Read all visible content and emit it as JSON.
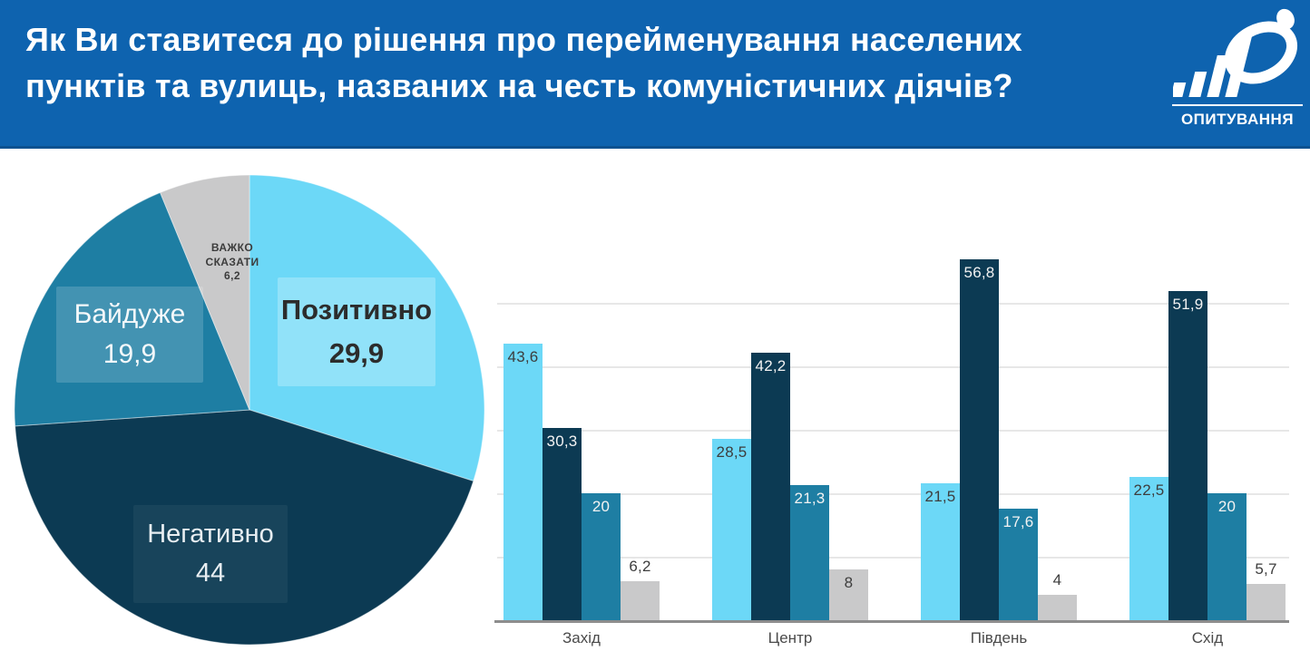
{
  "header": {
    "title_line1": "Як Ви ставитеся до рішення про перейменування населених",
    "title_line2": "пунктів та вулиць, названих на честь комуністичних діячів?",
    "logo_caption": "ОПИТУВАННЯ"
  },
  "colors": {
    "header_bg": "#0e63af",
    "positive": "#6cd8f7",
    "negative": "#0c3a53",
    "indifferent": "#1e7ea3",
    "hard_to_say": "#c9c9ca",
    "gridline": "#e7e7e7",
    "axis_line": "#8d8d8d"
  },
  "chart_data": [
    {
      "type": "pie",
      "title": "",
      "start_angle_deg": 0,
      "direction": "clockwise",
      "slices": [
        {
          "label": "Позитивно",
          "value": 29.9,
          "display": "29,9",
          "color": "#6cd8f7"
        },
        {
          "label": "Негативно",
          "value": 44,
          "display": "44",
          "color": "#0c3a53"
        },
        {
          "label": "Байдуже",
          "value": 19.9,
          "display": "19,9",
          "color": "#1e7ea3"
        },
        {
          "label": "Важко сказати",
          "label_line1": "ВАЖКО",
          "label_line2": "СКАЗАТИ",
          "value": 6.2,
          "display": "6,2",
          "color": "#c9c9ca"
        }
      ]
    },
    {
      "type": "bar",
      "categories": [
        "Захід",
        "Центр",
        "Південь",
        "Схід"
      ],
      "series": [
        {
          "name": "Позитивно",
          "color": "#6cd8f7",
          "values": [
            43.6,
            28.5,
            21.5,
            22.5
          ],
          "displays": [
            "43,6",
            "28,5",
            "21,5",
            "22,5"
          ]
        },
        {
          "name": "Негативно",
          "color": "#0c3a53",
          "values": [
            30.3,
            42.2,
            56.8,
            51.9
          ],
          "displays": [
            "30,3",
            "42,2",
            "56,8",
            "51,9"
          ]
        },
        {
          "name": "Байдуже",
          "color": "#1e7ea3",
          "values": [
            20,
            21.3,
            17.6,
            20
          ],
          "displays": [
            "20",
            "21,3",
            "17,6",
            "20"
          ]
        },
        {
          "name": "Важко сказати",
          "color": "#c9c9ca",
          "values": [
            6.2,
            8,
            4,
            5.7
          ],
          "displays": [
            "6,2",
            "8",
            "4",
            "5,7"
          ]
        }
      ],
      "ylim": [
        0,
        60
      ],
      "gridline_step": 10,
      "grid": true,
      "legend": "none"
    }
  ]
}
